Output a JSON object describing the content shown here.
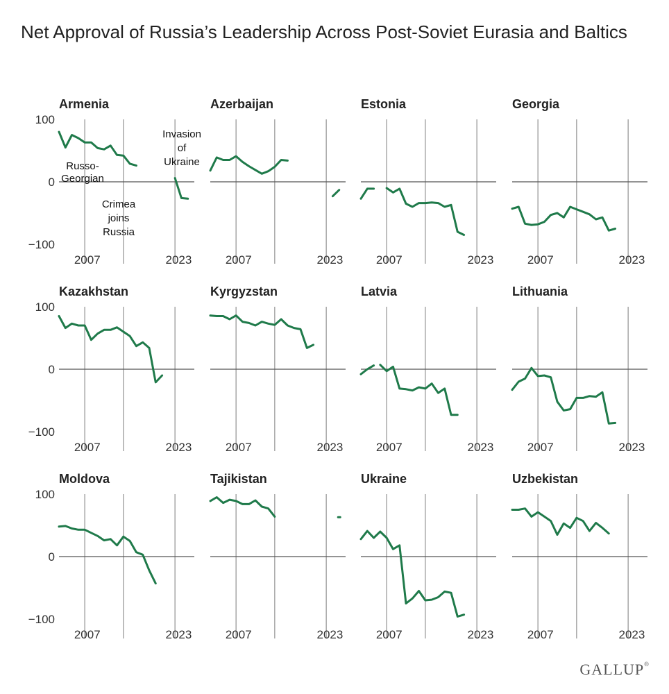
{
  "title": "Net Approval of Russia’s Leadership Across Post-Soviet Eurasia and Baltics",
  "brand": "GALLUP",
  "brand_mark": "®",
  "colors": {
    "line": "#1f7a4a",
    "zero": "#555555",
    "grid": "#999999"
  },
  "chart_data": {
    "type": "line",
    "x_range": [
      2004,
      2025
    ],
    "y_range": [
      -100,
      100
    ],
    "x_ticks": [
      2007,
      2023
    ],
    "y_ticks": [
      100,
      0,
      -100
    ],
    "y_tick_labels": [
      "100",
      "0",
      "−100"
    ],
    "event_years": [
      2008,
      2014,
      2022
    ],
    "panels": [
      {
        "name": "Armenia",
        "x": [
          2004,
          2005,
          2006,
          2007,
          2008,
          2009,
          2010,
          2011,
          2012,
          2013,
          2014,
          2015,
          2016,
          2017,
          2018,
          2019,
          null,
          2021,
          2022,
          2023,
          2024
        ],
        "values": [
          80,
          55,
          75,
          70,
          63,
          63,
          54,
          52,
          58,
          43,
          42,
          29,
          26,
          null,
          null,
          null,
          null,
          null,
          6,
          -26,
          -27
        ]
      },
      {
        "name": "Azerbaijan",
        "x": [
          2004,
          2005,
          2006,
          2007,
          2008,
          2009,
          2010,
          2011,
          2012,
          2013,
          2014,
          2015,
          2016,
          null,
          2022,
          2023,
          2024
        ],
        "values": [
          18,
          39,
          35,
          35,
          41,
          32,
          25,
          19,
          13,
          17,
          24,
          35,
          34,
          null,
          null,
          -23,
          -13
        ]
      },
      {
        "name": "Estonia",
        "x": [
          2004,
          2005,
          2006,
          2007,
          null,
          2008,
          2009,
          2010,
          2011,
          2012,
          2013,
          2014,
          2015,
          2016,
          2017,
          2018,
          2019,
          2020,
          2021,
          2022,
          2023
        ],
        "values": [
          -27,
          -11,
          -11,
          null,
          null,
          -10,
          -17,
          -11,
          -35,
          -40,
          -34,
          -34,
          -33,
          -34,
          -40,
          -37,
          -80,
          -85,
          null,
          null,
          null
        ]
      },
      {
        "name": "Georgia",
        "x": [
          2004,
          2005,
          2006,
          2007,
          2008,
          2009,
          2010,
          2011,
          2012,
          2013,
          2014,
          2015,
          2016,
          2017,
          2018,
          2019,
          2020,
          2021,
          2022,
          2023
        ],
        "values": [
          -43,
          -40,
          -67,
          -69,
          -68,
          -64,
          -53,
          -50,
          -57,
          -40,
          -44,
          -48,
          -52,
          -60,
          -57,
          -78,
          -75,
          null,
          null,
          null
        ]
      },
      {
        "name": "Kazakhstan",
        "x": [
          2004,
          2005,
          2006,
          2007,
          2008,
          2009,
          2010,
          2011,
          2012,
          2013,
          2014,
          2015,
          2016,
          2017,
          2018,
          2019,
          2020,
          2021
        ],
        "values": [
          85,
          66,
          73,
          70,
          70,
          47,
          57,
          63,
          63,
          67,
          60,
          53,
          37,
          43,
          34,
          -21,
          -10,
          null
        ]
      },
      {
        "name": "Kyrgyzstan",
        "x": [
          2004,
          2005,
          2006,
          2007,
          2008,
          2009,
          2010,
          2011,
          2012,
          2013,
          2014,
          2015,
          2016,
          2017,
          2018,
          2019,
          2020
        ],
        "values": [
          86,
          85,
          85,
          80,
          86,
          76,
          74,
          70,
          76,
          73,
          71,
          80,
          70,
          66,
          64,
          34,
          39
        ]
      },
      {
        "name": "Latvia",
        "x": [
          2004,
          2005,
          2006,
          null,
          2007,
          2008,
          2009,
          2010,
          2011,
          2012,
          2013,
          2014,
          2015,
          2016,
          2017,
          2018,
          2019,
          2020
        ],
        "values": [
          -8,
          0,
          6,
          null,
          7,
          -3,
          4,
          -31,
          -32,
          -34,
          -29,
          -31,
          -23,
          -38,
          -31,
          -73,
          -73,
          null
        ]
      },
      {
        "name": "Lithuania",
        "x": [
          2004,
          2005,
          2006,
          2007,
          2008,
          2009,
          2010,
          2011,
          2012,
          2013,
          2014,
          2015,
          2016,
          2017,
          2018,
          2019,
          2020,
          2021
        ],
        "values": [
          -33,
          -20,
          -15,
          2,
          -11,
          -10,
          -13,
          -52,
          -66,
          -64,
          -46,
          -46,
          -43,
          -44,
          -37,
          -87,
          -86,
          null
        ]
      },
      {
        "name": "Moldova",
        "x": [
          2004,
          2005,
          2006,
          2007,
          2008,
          2009,
          2010,
          2011,
          2012,
          2013,
          2014,
          2015,
          2016,
          2017,
          2018,
          2019,
          2020,
          2021,
          2022
        ],
        "values": [
          48,
          49,
          45,
          43,
          43,
          38,
          33,
          26,
          28,
          18,
          32,
          25,
          7,
          3,
          -22,
          -43,
          null,
          null,
          null
        ]
      },
      {
        "name": "Tajikistan",
        "x": [
          2004,
          2005,
          2006,
          2007,
          2008,
          2009,
          2010,
          2011,
          2012,
          2013,
          2014,
          null,
          2024
        ],
        "values": [
          89,
          95,
          86,
          91,
          89,
          84,
          84,
          90,
          80,
          77,
          64,
          null,
          63
        ]
      },
      {
        "name": "Ukraine",
        "x": [
          2004,
          2005,
          2006,
          2007,
          2008,
          2009,
          2010,
          2011,
          2012,
          2013,
          2014,
          2015,
          2016,
          2017,
          2018,
          2019,
          2020,
          2021,
          2022
        ],
        "values": [
          28,
          41,
          30,
          40,
          30,
          12,
          18,
          -75,
          -67,
          -55,
          -70,
          -69,
          -65,
          -56,
          -58,
          -96,
          -93,
          null,
          null
        ]
      },
      {
        "name": "Uzbekistan",
        "x": [
          2004,
          2005,
          2006,
          2007,
          2008,
          2009,
          2010,
          2011,
          2012,
          2013,
          2014,
          2015,
          2016,
          2017,
          2018,
          2019,
          2020,
          2021,
          2022,
          2023
        ],
        "values": [
          75,
          75,
          77,
          64,
          71,
          64,
          57,
          35,
          53,
          46,
          62,
          57,
          41,
          54,
          46,
          37,
          null,
          null,
          null,
          null
        ]
      }
    ],
    "annotations": [
      {
        "panel": "Armenia",
        "lines": [
          "Russo-",
          "Georgian"
        ]
      },
      {
        "panel": "Armenia",
        "lines": [
          "Crimea",
          "joins",
          "Russia"
        ]
      },
      {
        "panel": "Armenia",
        "lines": [
          "Invasion",
          "of",
          "Ukraine"
        ]
      }
    ]
  }
}
